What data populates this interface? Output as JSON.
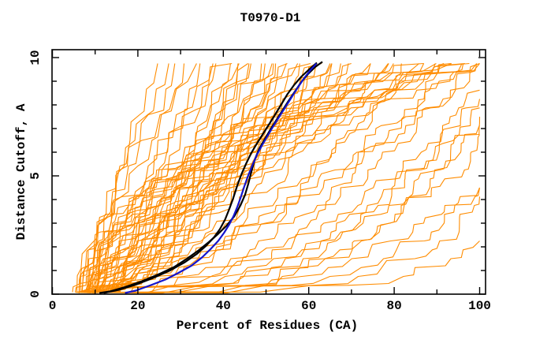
{
  "chart_data": {
    "type": "line",
    "title": "T0970-D1",
    "xlabel": "Percent of Residues (CA)",
    "ylabel": "Distance Cutoff, A",
    "xlim": [
      0,
      100
    ],
    "ylim": [
      0,
      10
    ],
    "x_major_ticks": [
      0,
      20,
      40,
      60,
      80,
      100
    ],
    "x_minor_step": 10,
    "y_major_ticks": [
      0,
      5,
      10
    ],
    "y_minor_step": 1,
    "grid": false,
    "legend_position": "none",
    "colors": {
      "ensemble": "#ff8c00",
      "model_black": "#000000",
      "model_blue": "#1414cc",
      "frame": "#000000",
      "background": "#ffffff"
    },
    "series": [
      {
        "name": "black-1",
        "color": "#000000",
        "points": [
          [
            11,
            0.05
          ],
          [
            13.5,
            0.12
          ],
          [
            17,
            0.3
          ],
          [
            21,
            0.55
          ],
          [
            25,
            0.85
          ],
          [
            28.5,
            1.15
          ],
          [
            31.5,
            1.5
          ],
          [
            34.2,
            1.85
          ],
          [
            36.6,
            2.2
          ],
          [
            38.8,
            2.55
          ],
          [
            40.8,
            2.9
          ],
          [
            42.6,
            3.3
          ],
          [
            44,
            3.75
          ],
          [
            45.1,
            4.2
          ],
          [
            45.9,
            4.7
          ],
          [
            46.6,
            5.2
          ],
          [
            47.4,
            5.7
          ],
          [
            48.4,
            6.15
          ],
          [
            49.7,
            6.55
          ],
          [
            51,
            6.95
          ],
          [
            52.4,
            7.35
          ],
          [
            53.8,
            7.75
          ],
          [
            55.2,
            8.15
          ],
          [
            56.7,
            8.55
          ],
          [
            58.2,
            8.95
          ],
          [
            59.8,
            9.3
          ],
          [
            61.5,
            9.6
          ],
          [
            63.2,
            9.82
          ]
        ]
      },
      {
        "name": "black-2",
        "color": "#000000",
        "points": [
          [
            12,
            0.05
          ],
          [
            15.5,
            0.18
          ],
          [
            19.5,
            0.4
          ],
          [
            23.5,
            0.68
          ],
          [
            27.5,
            1.0
          ],
          [
            31,
            1.35
          ],
          [
            33.8,
            1.7
          ],
          [
            36,
            2.05
          ],
          [
            37.8,
            2.4
          ],
          [
            39.2,
            2.75
          ],
          [
            40.4,
            3.15
          ],
          [
            41.4,
            3.6
          ],
          [
            42.3,
            4.05
          ],
          [
            43.2,
            4.55
          ],
          [
            44.2,
            5.05
          ],
          [
            45.3,
            5.5
          ],
          [
            46.5,
            5.95
          ],
          [
            47.8,
            6.35
          ],
          [
            49.2,
            6.75
          ],
          [
            50.6,
            7.15
          ],
          [
            52,
            7.55
          ],
          [
            53.5,
            8.0
          ],
          [
            55,
            8.45
          ],
          [
            56.6,
            8.85
          ],
          [
            58.3,
            9.2
          ],
          [
            60.1,
            9.5
          ],
          [
            61.9,
            9.78
          ]
        ]
      },
      {
        "name": "blue",
        "color": "#1414cc",
        "points": [
          [
            17,
            0.05
          ],
          [
            19.5,
            0.15
          ],
          [
            23,
            0.38
          ],
          [
            26.5,
            0.62
          ],
          [
            29.5,
            0.9
          ],
          [
            32.5,
            1.2
          ],
          [
            35,
            1.55
          ],
          [
            37,
            1.9
          ],
          [
            38.8,
            2.25
          ],
          [
            40.2,
            2.6
          ],
          [
            41.4,
            2.95
          ],
          [
            42.4,
            3.3
          ],
          [
            43.3,
            3.7
          ],
          [
            44.1,
            4.1
          ],
          [
            44.9,
            4.55
          ],
          [
            45.8,
            5.0
          ],
          [
            46.8,
            5.45
          ],
          [
            47.9,
            5.9
          ],
          [
            49.1,
            6.3
          ],
          [
            50.4,
            6.7
          ],
          [
            51.7,
            7.1
          ],
          [
            53.1,
            7.5
          ],
          [
            54.5,
            7.9
          ],
          [
            55.9,
            8.3
          ],
          [
            57.3,
            8.7
          ],
          [
            58.8,
            9.1
          ],
          [
            60.3,
            9.45
          ],
          [
            61.8,
            9.75
          ]
        ]
      }
    ],
    "ensemble_format": [
      "start_pct",
      "pct_at_top_cutoff",
      "shape_exponent"
    ],
    "ensemble_top_cutoff": 9.75,
    "ensemble_curves": [
      [
        5.8,
        25,
        0.85
      ],
      [
        6.2,
        27,
        0.9
      ],
      [
        6.6,
        29,
        0.8
      ],
      [
        7,
        31,
        0.95
      ],
      [
        6,
        33,
        0.75
      ],
      [
        7.4,
        35,
        0.9
      ],
      [
        5.9,
        37,
        1.0
      ],
      [
        6.4,
        39,
        1.2
      ],
      [
        7.2,
        41,
        0.9
      ],
      [
        8,
        43,
        1.1
      ],
      [
        6.8,
        45,
        1.35
      ],
      [
        7.6,
        47,
        0.95
      ],
      [
        8.4,
        49,
        1.25
      ],
      [
        9,
        51,
        1.05
      ],
      [
        6.2,
        53,
        1.4
      ],
      [
        7,
        55,
        1.15
      ],
      [
        8.8,
        57,
        0.9
      ],
      [
        9.6,
        59,
        1.3
      ],
      [
        10.4,
        61,
        1.0
      ],
      [
        6.6,
        63,
        1.5
      ],
      [
        7.4,
        65,
        1.1
      ],
      [
        8.2,
        67,
        1.35
      ],
      [
        9.2,
        69,
        0.95
      ],
      [
        10,
        71,
        1.2
      ],
      [
        11,
        73,
        1.45
      ],
      [
        12,
        75,
        1.0
      ],
      [
        6.9,
        64,
        1.8
      ],
      [
        7.7,
        58,
        1.6
      ],
      [
        8.5,
        52,
        1.5
      ],
      [
        9.3,
        46,
        1.35
      ],
      [
        10.1,
        42,
        1.15
      ],
      [
        11.5,
        48,
        1.7
      ],
      [
        12.5,
        56,
        1.3
      ],
      [
        13.5,
        62,
        1.1
      ],
      [
        14.5,
        68,
        1.25
      ],
      [
        15,
        44,
        1.05
      ],
      [
        6.1,
        77,
        0.65
      ],
      [
        6.9,
        79,
        1.5
      ],
      [
        7.7,
        81,
        0.75
      ],
      [
        8.5,
        83,
        1.9
      ],
      [
        9.4,
        85,
        0.6
      ],
      [
        10.2,
        87,
        1.4
      ],
      [
        11.2,
        89,
        0.8
      ],
      [
        12.2,
        91,
        2.2
      ],
      [
        6.3,
        93,
        0.7
      ],
      [
        7.1,
        95,
        1.6
      ],
      [
        8.1,
        97,
        0.55
      ],
      [
        9.1,
        99,
        1.9
      ],
      [
        10.5,
        100,
        0.65
      ],
      [
        11.8,
        101,
        1.3
      ],
      [
        6.5,
        104,
        2.8
      ],
      [
        7.3,
        108,
        3.4
      ],
      [
        8.3,
        112,
        2.5
      ],
      [
        9.5,
        118,
        4.0
      ],
      [
        10.8,
        125,
        3.0
      ],
      [
        6.7,
        122,
        4.5
      ],
      [
        7.9,
        130,
        5.0
      ],
      [
        8.9,
        110,
        2.2
      ],
      [
        12.8,
        105,
        2.0
      ],
      [
        14,
        116,
        2.6
      ],
      [
        5.6,
        88,
        0.45
      ],
      [
        6.2,
        96,
        0.5
      ],
      [
        7,
        92,
        0.42
      ],
      [
        7.8,
        100,
        0.48
      ],
      [
        8.6,
        84,
        0.52
      ],
      [
        9.8,
        98,
        0.4
      ]
    ]
  }
}
